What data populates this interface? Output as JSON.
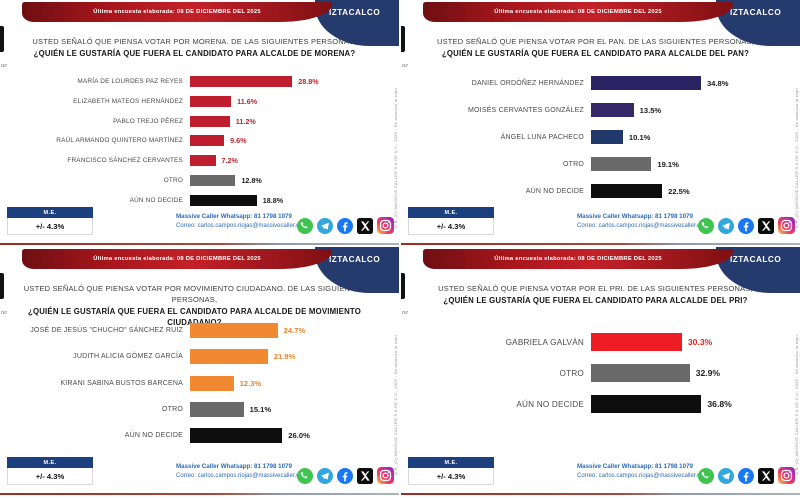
{
  "shared": {
    "banner_text": "Última encuesta elaborada: 08 DE DICIEMBRE DEL 2025",
    "region_label": "IZTACALCO",
    "logo_fragment": "ne",
    "margin_box": {
      "header": "M.E.",
      "value": "+/- 4.3%"
    },
    "contact": {
      "line1": "Massive Caller Whatsapp: 81 1798 1079",
      "line2": "Correo: carlos.campos.riojas@massivecaller.com"
    },
    "side_note": "D.R. (C) MASSIVE CALLER S.A DE C.V., 2025 - Se autoriza la reproducción citando la fuente",
    "social": [
      "whatsapp-icon",
      "telegram-icon",
      "facebook-icon",
      "x-icon",
      "instagram-icon"
    ],
    "colors": {
      "banner_red": "#b01820",
      "header_navy": "#253a6d",
      "morena_red": "#bf1e2e",
      "pan_navy": "#2a2562",
      "mc_orange": "#f0892f",
      "pri_red": "#ee1c23",
      "otro_gray": "#6a6a6a",
      "no_decide_black": "#0e0e0e",
      "contact_blue": "#2e6cb5"
    }
  },
  "slides": [
    {
      "question_line1": "USTED SEÑALÓ QUE PIENSA VOTAR POR MORENA. DE LAS SIGUIENTES PERSONAS,",
      "question_line2": "¿QUIÉN LE GUSTARÍA QUE FUERA EL CANDIDATO PARA ALCALDE DE MORENA?"
    },
    {
      "question_line1": "USTED SEÑALÓ QUE PIENSA VOTAR POR EL PAN. DE LAS SIGUIENTES PERSONAS,",
      "question_line2": "¿QUIÉN LE GUSTARÍA QUE FUERA EL CANDIDATO PARA ALCALDE DEL PAN?"
    },
    {
      "question_line1": "USTED SEÑALÓ QUE PIENSA VOTAR POR MOVIMIENTO CIUDADANO. DE LAS SIGUIENTES PERSONAS,",
      "question_line2": "¿QUIÉN LE GUSTARÍA QUE FUERA EL CANDIDATO PARA ALCALDE DE MOVIMIENTO CIUDADANO?"
    },
    {
      "question_line1": "USTED SEÑALÓ QUE PIENSA VOTAR POR EL PRI. DE LAS SIGUIENTES PERSONAS,",
      "question_line2": "¿QUIÉN LE GUSTARÍA QUE FUERA EL CANDIDATO PARA ALCALDE DEL PRI?"
    }
  ],
  "chart_data": [
    {
      "type": "bar",
      "orientation": "horizontal",
      "party": "MORENA",
      "title": "¿QUIÉN LE GUSTARÍA QUE FUERA EL CANDIDATO PARA ALCALDE DE MORENA?",
      "unit": "%",
      "categories": [
        "MARÍA DE LOURDES PAZ REYES",
        "ELIZABETH MATEOS HERNÁNDEZ",
        "PABLO TREJO PÉREZ",
        "RAÚL ARMANDO QUINTERO MARTÍNEZ",
        "FRANCISCO SÁNCHEZ CERVANTES",
        "OTRO",
        "AÚN NO DECIDE"
      ],
      "values": [
        28.8,
        11.6,
        11.2,
        9.6,
        7.2,
        12.8,
        18.8
      ],
      "labels": [
        "28.8%",
        "11.6%",
        "11.2%",
        "9.6%",
        "7.2%",
        "12.8%",
        "18.8%"
      ]
    },
    {
      "type": "bar",
      "orientation": "horizontal",
      "party": "PAN",
      "title": "¿QUIÉN LE GUSTARÍA QUE FUERA EL CANDIDATO PARA ALCALDE DEL PAN?",
      "unit": "%",
      "categories": [
        "DANIEL ORDÓÑEZ HERNÁNDEZ",
        "MOISÉS CERVANTES GONZÁLEZ",
        "ÁNGEL LUNA PACHECO",
        "OTRO",
        "AÚN NO DECIDE"
      ],
      "values": [
        34.8,
        13.5,
        10.1,
        19.1,
        22.5
      ],
      "labels": [
        "34.8%",
        "13.5%",
        "10.1%",
        "19.1%",
        "22.5%"
      ]
    },
    {
      "type": "bar",
      "orientation": "horizontal",
      "party": "MOVIMIENTO CIUDADANO",
      "title": "¿QUIÉN LE GUSTARÍA QUE FUERA EL CANDIDATO PARA ALCALDE DE MOVIMIENTO CIUDADANO?",
      "unit": "%",
      "categories": [
        "JOSÉ DE JESÚS \"CHUCHO\" SÁNCHEZ RUIZ",
        "JUDITH ALICIA GÓMEZ GARCÍA",
        "KIRANI SABINA BUSTOS BARCENA",
        "OTRO",
        "AÚN NO DECIDE"
      ],
      "values": [
        24.7,
        21.9,
        12.3,
        15.1,
        26.0
      ],
      "labels": [
        "24.7%",
        "21.9%",
        "12.3%",
        "15.1%",
        "26.0%"
      ]
    },
    {
      "type": "bar",
      "orientation": "horizontal",
      "party": "PRI",
      "title": "¿QUIÉN LE GUSTARÍA QUE FUERA EL CANDIDATO PARA ALCALDE DEL PRI?",
      "unit": "%",
      "categories": [
        "GABRIELA GALVÁN",
        "OTRO",
        "AÚN NO DECIDE"
      ],
      "values": [
        30.3,
        32.9,
        36.8
      ],
      "labels": [
        "30.3%",
        "32.9%",
        "36.8%"
      ]
    }
  ]
}
